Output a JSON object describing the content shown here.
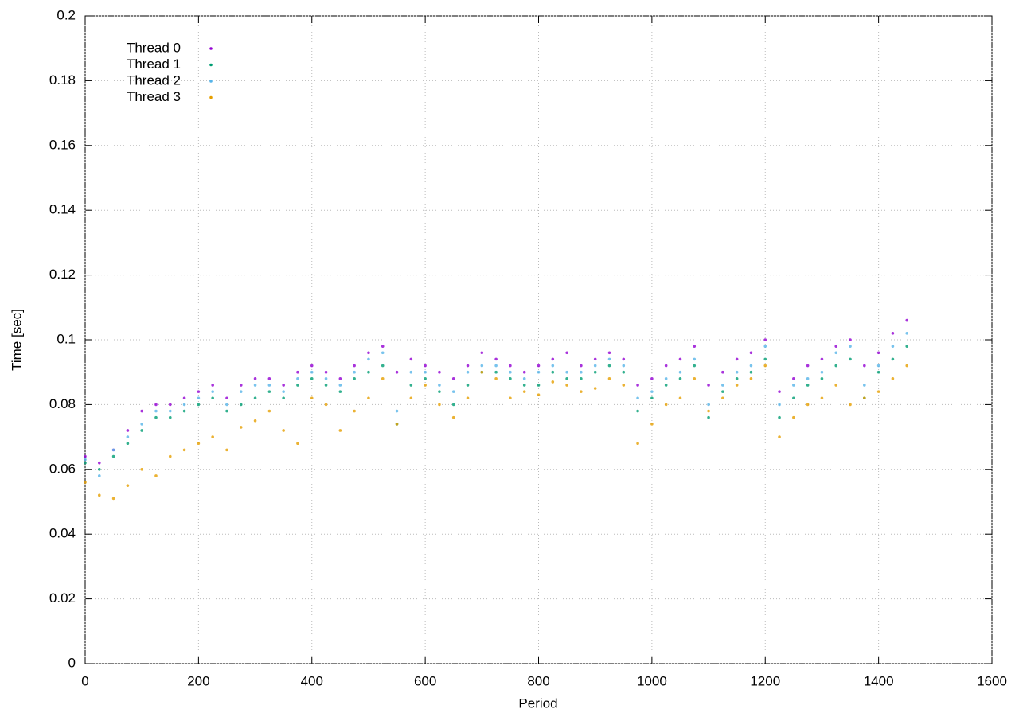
{
  "chart_data": {
    "type": "scatter",
    "xlabel": "Period",
    "ylabel": "Time [sec]",
    "xlim": [
      0,
      1600
    ],
    "xticks": [
      0,
      200,
      400,
      600,
      800,
      1000,
      1200,
      1400,
      1600
    ],
    "ylim": [
      0,
      0.2
    ],
    "yticks": [
      0,
      0.02,
      0.04,
      0.06,
      0.08,
      0.1,
      0.12,
      0.14,
      0.16,
      0.18,
      0.2
    ],
    "grid": true,
    "legend": "upper-left",
    "x": [
      0,
      25,
      50,
      75,
      100,
      125,
      150,
      175,
      200,
      225,
      250,
      275,
      300,
      325,
      350,
      375,
      400,
      425,
      450,
      475,
      500,
      525,
      550,
      575,
      600,
      625,
      650,
      675,
      700,
      725,
      750,
      775,
      800,
      825,
      850,
      875,
      900,
      925,
      950,
      975,
      1000,
      1025,
      1050,
      1075,
      1100,
      1125,
      1150,
      1175,
      1200,
      1225,
      1250,
      1275,
      1300,
      1325,
      1350,
      1375,
      1400,
      1425,
      1450
    ],
    "series": [
      {
        "name": "Thread 0",
        "color": "#9400d3",
        "values": [
          0.064,
          0.062,
          0.066,
          0.072,
          0.078,
          0.08,
          0.08,
          0.082,
          0.084,
          0.086,
          0.082,
          0.086,
          0.088,
          0.088,
          0.086,
          0.09,
          0.092,
          0.09,
          0.088,
          0.092,
          0.096,
          0.098,
          0.09,
          0.094,
          0.092,
          0.09,
          0.088,
          0.092,
          0.096,
          0.094,
          0.092,
          0.09,
          0.092,
          0.094,
          0.096,
          0.092,
          0.094,
          0.096,
          0.094,
          0.086,
          0.088,
          0.092,
          0.094,
          0.098,
          0.086,
          0.09,
          0.094,
          0.096,
          0.1,
          0.084,
          0.088,
          0.092,
          0.094,
          0.098,
          0.1,
          0.092,
          0.096,
          0.102,
          0.106
        ]
      },
      {
        "name": "Thread 1",
        "color": "#009e73",
        "values": [
          0.062,
          0.06,
          0.064,
          0.068,
          0.072,
          0.076,
          0.076,
          0.078,
          0.08,
          0.082,
          0.078,
          0.08,
          0.082,
          0.084,
          0.082,
          0.086,
          0.088,
          0.086,
          0.084,
          0.088,
          0.09,
          0.092,
          0.074,
          0.086,
          0.088,
          0.084,
          0.08,
          0.086,
          0.09,
          0.09,
          0.088,
          0.086,
          0.086,
          0.09,
          0.088,
          0.088,
          0.09,
          0.092,
          0.09,
          0.078,
          0.082,
          0.086,
          0.088,
          0.092,
          0.076,
          0.084,
          0.088,
          0.09,
          0.094,
          0.076,
          0.082,
          0.086,
          0.088,
          0.092,
          0.094,
          0.082,
          0.09,
          0.094,
          0.098
        ]
      },
      {
        "name": "Thread 2",
        "color": "#56b4e9",
        "values": [
          0.063,
          0.058,
          0.066,
          0.07,
          0.074,
          0.078,
          0.078,
          0.08,
          0.082,
          0.084,
          0.08,
          0.084,
          0.086,
          0.086,
          0.084,
          0.088,
          0.09,
          0.088,
          0.086,
          0.09,
          0.094,
          0.096,
          0.078,
          0.09,
          0.09,
          0.086,
          0.084,
          0.09,
          0.092,
          0.092,
          0.09,
          0.088,
          0.09,
          0.092,
          0.09,
          0.09,
          0.092,
          0.094,
          0.092,
          0.082,
          0.084,
          0.088,
          0.09,
          0.094,
          0.08,
          0.086,
          0.09,
          0.092,
          0.098,
          0.08,
          0.086,
          0.088,
          0.09,
          0.096,
          0.098,
          0.086,
          0.092,
          0.098,
          0.102
        ]
      },
      {
        "name": "Thread 3",
        "color": "#e69f00",
        "values": [
          0.056,
          0.052,
          0.051,
          0.055,
          0.06,
          0.058,
          0.064,
          0.066,
          0.068,
          0.07,
          0.066,
          0.073,
          0.075,
          0.078,
          0.072,
          0.068,
          0.082,
          0.08,
          0.072,
          0.078,
          0.082,
          0.088,
          0.074,
          0.082,
          0.086,
          0.08,
          0.076,
          0.082,
          0.09,
          0.088,
          0.082,
          0.084,
          0.083,
          0.087,
          0.086,
          0.084,
          0.085,
          0.088,
          0.086,
          0.068,
          0.074,
          0.08,
          0.082,
          0.088,
          0.078,
          0.082,
          0.086,
          0.088,
          0.092,
          0.07,
          0.076,
          0.08,
          0.082,
          0.086,
          0.08,
          0.082,
          0.084,
          0.088,
          0.092
        ]
      }
    ]
  }
}
